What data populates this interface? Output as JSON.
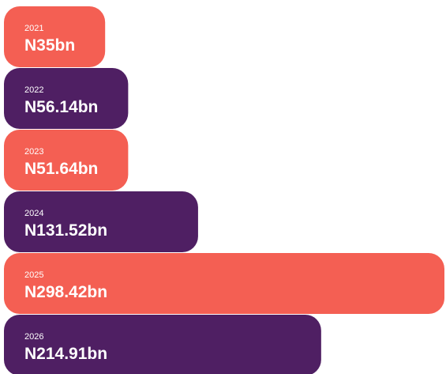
{
  "chart_data": {
    "type": "bar",
    "orientation": "horizontal",
    "categories": [
      "2021",
      "2022",
      "2023",
      "2024",
      "2025",
      "2026"
    ],
    "values": [
      35,
      56.14,
      51.64,
      131.52,
      298.42,
      214.91
    ],
    "value_labels": [
      "N35bn",
      "N56.14bn",
      "N51.64bn",
      "N131.52bn",
      "N298.42bn",
      "N214.91bn"
    ],
    "colors": [
      "#f45f53",
      "#4f1f63",
      "#f45f53",
      "#4f1f63",
      "#f45f53",
      "#4f1f63"
    ]
  }
}
